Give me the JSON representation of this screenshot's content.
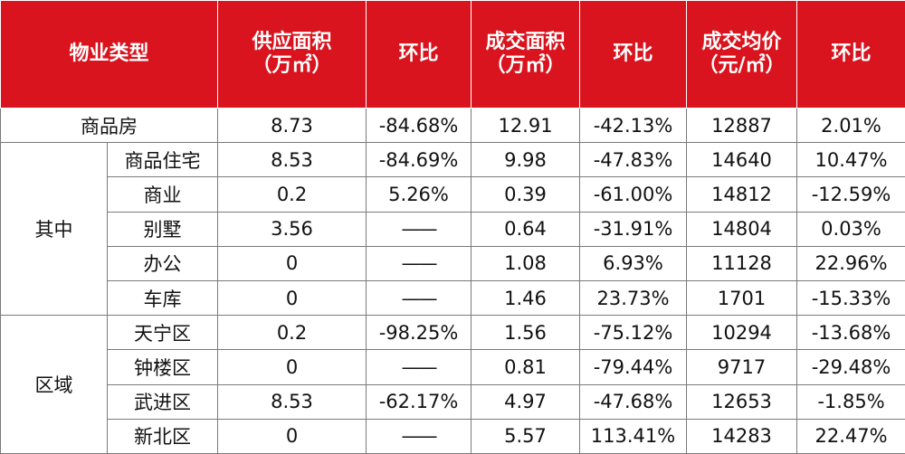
{
  "header": {
    "property_type": "物业类型",
    "supply_area": "供应面积\n（万㎡）",
    "supply_mom": "环比",
    "deal_area": "成交面积\n（万㎡）",
    "deal_mom": "环比",
    "avg_price": "成交均价\n（元/㎡）",
    "price_mom": "环比"
  },
  "group_labels": {
    "of_which": "其中",
    "district": "区域"
  },
  "rows": [
    {
      "name": "商品房",
      "supply": "8.73",
      "supply_mom": "-84.68%",
      "deal": "12.91",
      "deal_mom": "-42.13%",
      "price": "12887",
      "price_mom": "2.01%"
    },
    {
      "name": "商品住宅",
      "supply": "8.53",
      "supply_mom": "-84.69%",
      "deal": "9.98",
      "deal_mom": "-47.83%",
      "price": "14640",
      "price_mom": "10.47%"
    },
    {
      "name": "商业",
      "supply": "0.2",
      "supply_mom": "5.26%",
      "deal": "0.39",
      "deal_mom": "-61.00%",
      "price": "14812",
      "price_mom": "-12.59%"
    },
    {
      "name": "别墅",
      "supply": "3.56",
      "supply_mom": "——",
      "deal": "0.64",
      "deal_mom": "-31.91%",
      "price": "14804",
      "price_mom": "0.03%"
    },
    {
      "name": "办公",
      "supply": "0",
      "supply_mom": "——",
      "deal": "1.08",
      "deal_mom": "6.93%",
      "price": "11128",
      "price_mom": "22.96%"
    },
    {
      "name": "车库",
      "supply": "0",
      "supply_mom": "——",
      "deal": "1.46",
      "deal_mom": "23.73%",
      "price": "1701",
      "price_mom": "-15.33%"
    },
    {
      "name": "天宁区",
      "supply": "0.2",
      "supply_mom": "-98.25%",
      "deal": "1.56",
      "deal_mom": "-75.12%",
      "price": "10294",
      "price_mom": "-13.68%"
    },
    {
      "name": "钟楼区",
      "supply": "0",
      "supply_mom": "——",
      "deal": "0.81",
      "deal_mom": "-79.44%",
      "price": "9717",
      "price_mom": "-29.48%"
    },
    {
      "name": "武进区",
      "supply": "8.53",
      "supply_mom": "-62.17%",
      "deal": "4.97",
      "deal_mom": "-47.68%",
      "price": "12653",
      "price_mom": "-1.85%"
    },
    {
      "name": "新北区",
      "supply": "0",
      "supply_mom": "——",
      "deal": "5.57",
      "deal_mom": "113.41%",
      "price": "14283",
      "price_mom": "22.47%"
    }
  ],
  "colors": {
    "header_bg": "#d9141e",
    "positive": "#e02020",
    "negative": "#1aa64a"
  }
}
